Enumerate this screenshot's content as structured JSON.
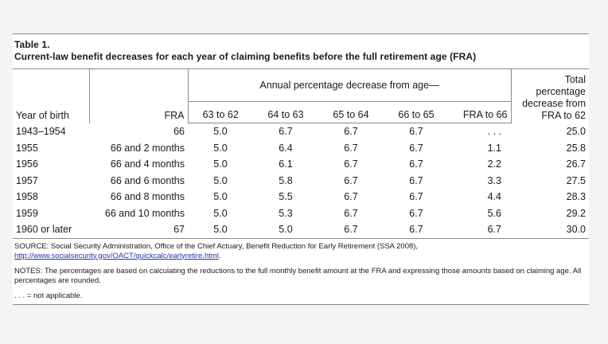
{
  "table": {
    "title": "Table 1.",
    "subtitle": "Current-law benefit decreases for each year of claiming benefits before the full retirement age (FRA)",
    "header_group": "Annual percentage decrease from age—",
    "columns": {
      "year_of_birth": "Year of birth",
      "fra": "FRA",
      "age_63_62": "63 to 62",
      "age_64_63": "64 to 63",
      "age_65_64": "65 to 64",
      "age_66_65": "66 to 65",
      "fra_66": "FRA to 66",
      "total_line1": "Total",
      "total_line2": "percentage",
      "total_line3": "decrease from",
      "total_line4": "FRA to 62"
    },
    "rows": [
      [
        "1943–1954",
        "66",
        "5.0",
        "6.7",
        "6.7",
        "6.7",
        ". . .",
        "25.0"
      ],
      [
        "1955",
        "66 and 2 months",
        "5.0",
        "6.4",
        "6.7",
        "6.7",
        "1.1",
        "25.8"
      ],
      [
        "1956",
        "66 and 4 months",
        "5.0",
        "6.1",
        "6.7",
        "6.7",
        "2.2",
        "26.7"
      ],
      [
        "1957",
        "66 and 6 months",
        "5.0",
        "5.8",
        "6.7",
        "6.7",
        "3.3",
        "27.5"
      ],
      [
        "1958",
        "66 and 8 months",
        "5.0",
        "5.5",
        "6.7",
        "6.7",
        "4.4",
        "28.3"
      ],
      [
        "1959",
        "66 and 10 months",
        "5.0",
        "5.3",
        "6.7",
        "6.7",
        "5.6",
        "29.2"
      ],
      [
        "1960 or later",
        "67",
        "5.0",
        "5.0",
        "6.7",
        "6.7",
        "6.7",
        "30.0"
      ]
    ]
  },
  "notes": {
    "source_text": "SOURCE: Social Security Administration, Office of the Chief Actuary, Benefit Reduction for Early Retirement (SSA 2008),",
    "source_link": "http://www.socialsecurity.gov/OACT/quickcalc/earlyretire.html",
    "source_link_suffix": ".",
    "notes_text": "NOTES: The percentages are based on calculating the reductions to the full monthly benefit amount at the FRA and expressing those amounts based on claiming age. All percentages are rounded.",
    "na_text": ". . . = not applicable."
  }
}
